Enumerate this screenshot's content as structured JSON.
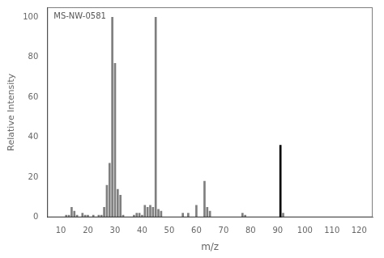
{
  "chart_data": {
    "type": "bar",
    "xlabel": "m/z",
    "ylabel": "Relative Intensity",
    "annotation": "MS-NW-0581",
    "x": [
      12,
      13,
      14,
      15,
      16,
      18,
      19,
      20,
      22,
      24,
      25,
      26,
      27,
      28,
      29,
      30,
      31,
      32,
      33,
      37,
      38,
      39,
      40,
      41,
      42,
      43,
      44,
      45,
      46,
      47,
      55,
      57,
      60,
      63,
      64,
      65,
      77,
      78,
      91,
      92
    ],
    "values": [
      1,
      1,
      5,
      3,
      1,
      2,
      1,
      1,
      1,
      1,
      1,
      5,
      16,
      27,
      100,
      77,
      14,
      11,
      1,
      1,
      2,
      2,
      1,
      6,
      5,
      6,
      5,
      100,
      4,
      3,
      2,
      2,
      6,
      18,
      5,
      3,
      2,
      1,
      36,
      2
    ],
    "colors": [
      "#7f7f7f",
      "#7f7f7f",
      "#7f7f7f",
      "#7f7f7f",
      "#7f7f7f",
      "#7f7f7f",
      "#7f7f7f",
      "#7f7f7f",
      "#7f7f7f",
      "#7f7f7f",
      "#7f7f7f",
      "#7f7f7f",
      "#7f7f7f",
      "#7f7f7f",
      "#7f7f7f",
      "#7f7f7f",
      "#7f7f7f",
      "#7f7f7f",
      "#7f7f7f",
      "#7f7f7f",
      "#7f7f7f",
      "#7f7f7f",
      "#7f7f7f",
      "#7f7f7f",
      "#7f7f7f",
      "#7f7f7f",
      "#7f7f7f",
      "#7f7f7f",
      "#7f7f7f",
      "#7f7f7f",
      "#7f7f7f",
      "#7f7f7f",
      "#7f7f7f",
      "#7f7f7f",
      "#7f7f7f",
      "#7f7f7f",
      "#7f7f7f",
      "#7f7f7f",
      "#000000",
      "#7f7f7f"
    ],
    "xlim": [
      10,
      120
    ],
    "ylim": [
      0,
      105
    ],
    "xticks": [
      10,
      20,
      30,
      40,
      50,
      60,
      70,
      80,
      90,
      100,
      110,
      120
    ],
    "yticks": [
      0,
      20,
      40,
      60,
      80,
      100
    ],
    "grid": false
  }
}
